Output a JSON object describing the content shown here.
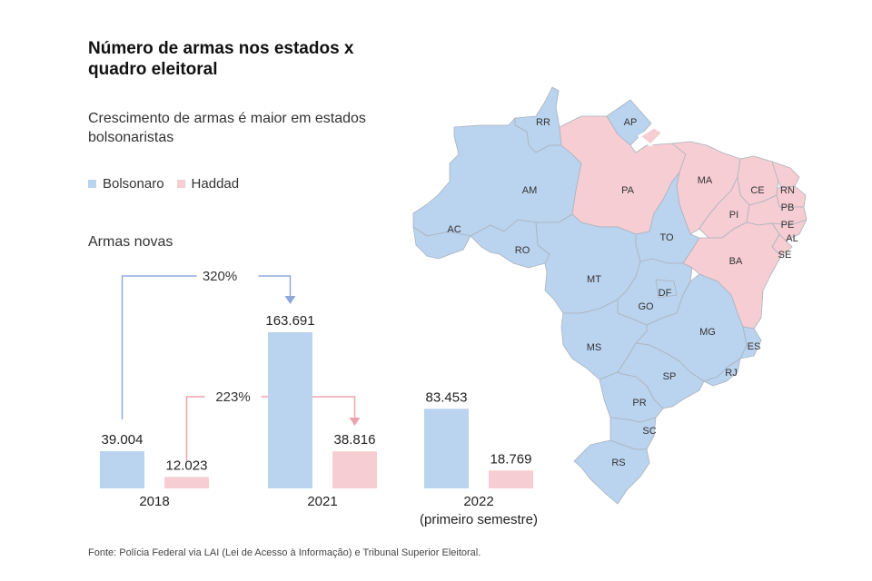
{
  "header": {
    "title": "Número de armas nos estados x quadro eleitoral",
    "subtitle": "Crescimento de armas é maior em estados bolsonaristas"
  },
  "legend": [
    {
      "label": "Bolsonaro",
      "color": "#bad3ee"
    },
    {
      "label": "Haddad",
      "color": "#f6cdd2"
    }
  ],
  "section_label": "Armas novas",
  "source": "Fonte: Polícia Federal via LAI (Lei de Acesso à Informação) e Tribunal Superior Eleitoral.",
  "chart_data": [
    {
      "type": "bar",
      "title": "Armas novas",
      "categories": [
        "2018",
        "2021",
        "2022\n(primeiro semestre)"
      ],
      "category_lines": [
        [
          "2018"
        ],
        [
          "2021"
        ],
        [
          "2022",
          "(primeiro semestre)"
        ]
      ],
      "series": [
        {
          "name": "Bolsonaro",
          "color": "#bad3ee",
          "values": [
            39004,
            163691,
            83453
          ],
          "labels": [
            "39.004",
            "163.691",
            "83.453"
          ]
        },
        {
          "name": "Haddad",
          "color": "#f6cdd2",
          "values": [
            12023,
            38816,
            18769
          ],
          "labels": [
            "12.023",
            "38.816",
            "18.769"
          ]
        }
      ],
      "annotations": [
        {
          "series": "Bolsonaro",
          "from": "2018",
          "to": "2021",
          "label": "320%",
          "color": "#8fa9dc"
        },
        {
          "series": "Haddad",
          "from": "2018",
          "to": "2021",
          "label": "223%",
          "color": "#eda3ad"
        }
      ],
      "ylim": [
        0,
        170000
      ],
      "grid": false,
      "legend": "top-left"
    },
    {
      "type": "map",
      "title": "Brazil states by 2018 election winner",
      "states": [
        {
          "abbr": "RR",
          "winner": "Bolsonaro"
        },
        {
          "abbr": "AP",
          "winner": "Bolsonaro"
        },
        {
          "abbr": "AM",
          "winner": "Bolsonaro"
        },
        {
          "abbr": "PA",
          "winner": "Haddad"
        },
        {
          "abbr": "AC",
          "winner": "Bolsonaro"
        },
        {
          "abbr": "RO",
          "winner": "Bolsonaro"
        },
        {
          "abbr": "MA",
          "winner": "Haddad"
        },
        {
          "abbr": "CE",
          "winner": "Haddad"
        },
        {
          "abbr": "RN",
          "winner": "Haddad"
        },
        {
          "abbr": "PB",
          "winner": "Haddad"
        },
        {
          "abbr": "PI",
          "winner": "Haddad"
        },
        {
          "abbr": "PE",
          "winner": "Haddad"
        },
        {
          "abbr": "AL",
          "winner": "Haddad"
        },
        {
          "abbr": "SE",
          "winner": "Haddad"
        },
        {
          "abbr": "TO",
          "winner": "Bolsonaro"
        },
        {
          "abbr": "BA",
          "winner": "Haddad"
        },
        {
          "abbr": "MT",
          "winner": "Bolsonaro"
        },
        {
          "abbr": "DF",
          "winner": "Bolsonaro"
        },
        {
          "abbr": "GO",
          "winner": "Bolsonaro"
        },
        {
          "abbr": "MG",
          "winner": "Bolsonaro"
        },
        {
          "abbr": "MS",
          "winner": "Bolsonaro"
        },
        {
          "abbr": "ES",
          "winner": "Bolsonaro"
        },
        {
          "abbr": "SP",
          "winner": "Bolsonaro"
        },
        {
          "abbr": "RJ",
          "winner": "Bolsonaro"
        },
        {
          "abbr": "PR",
          "winner": "Bolsonaro"
        },
        {
          "abbr": "SC",
          "winner": "Bolsonaro"
        },
        {
          "abbr": "RS",
          "winner": "Bolsonaro"
        }
      ]
    }
  ]
}
